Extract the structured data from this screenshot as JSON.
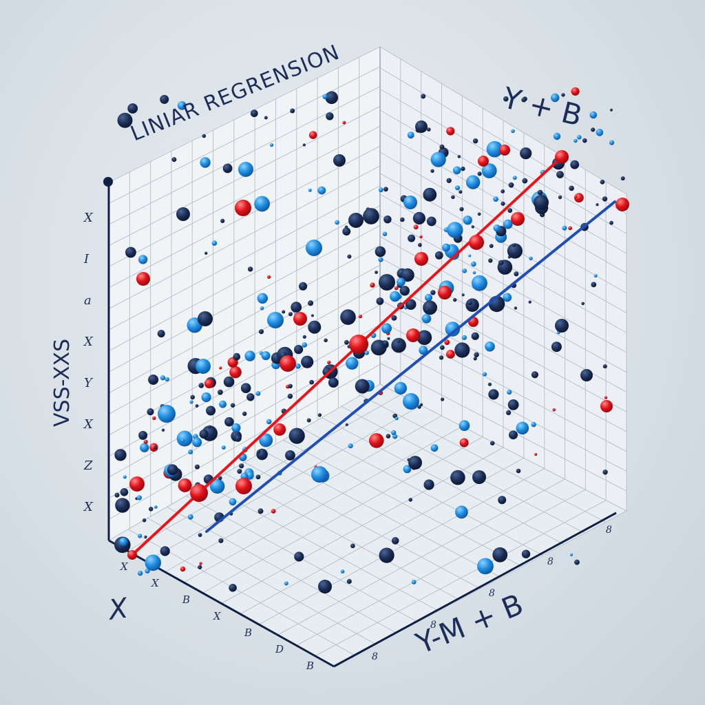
{
  "title": "LINIAR REGRENSION",
  "equation_top_right": "Y + B",
  "equation_bottom_right": "Y-M + B",
  "x_axis_label": "X",
  "y_axis_label": "VSS-XXS",
  "left_axis_marks": [
    "X",
    "I",
    "a",
    "X",
    "Y",
    "X",
    "Z",
    "X"
  ],
  "bottom_axis_marks": [
    "X",
    "X",
    "B",
    "X",
    "B",
    "D",
    "B"
  ],
  "right_axis_marks": [
    "8",
    "8",
    "8",
    "8",
    "8"
  ],
  "colors": {
    "background": "#d9e1e7",
    "grid_line": "#b9c2cc",
    "wall": "#eef2f5",
    "floor": "#e9eef2",
    "axis": "#0f1f45",
    "regression_line_red": "#e8161c",
    "regression_line_blue": "#1f4fb5",
    "point_dark_navy": "#14244a",
    "point_bright_blue": "#1f8de0",
    "point_red": "#e0121a"
  }
}
